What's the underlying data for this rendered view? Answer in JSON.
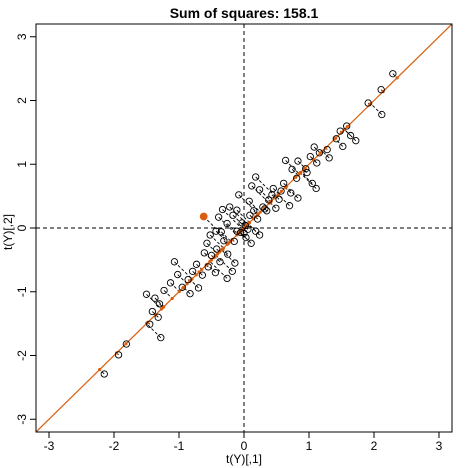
{
  "chart_data": {
    "type": "scatter",
    "title": "Sum of squares: 158.1",
    "xlabel": "t(Y)[,1]",
    "ylabel": "t(Y)[,2]",
    "xlim": [
      -3.2,
      3.2
    ],
    "ylim": [
      -3.2,
      3.2
    ],
    "xticks": [
      -3,
      -2,
      -1,
      0,
      1,
      2,
      3
    ],
    "yticks": [
      -3,
      -2,
      -1,
      0,
      1,
      2,
      3
    ],
    "projection_line": {
      "slope": 1.0,
      "intercept": 0.0
    },
    "highlighted_point": [
      -0.62,
      0.18
    ],
    "reference_lines": {
      "x": 0,
      "y": 0
    },
    "colors": {
      "points": "#000000",
      "projection": "#d95f0e",
      "reference": "#000000"
    },
    "points": [
      [
        2.29,
        2.42
      ],
      [
        2.11,
        2.17
      ],
      [
        2.12,
        1.78
      ],
      [
        1.91,
        1.96
      ],
      [
        1.72,
        1.37
      ],
      [
        1.64,
        1.45
      ],
      [
        1.58,
        1.6
      ],
      [
        1.52,
        1.28
      ],
      [
        1.48,
        1.52
      ],
      [
        1.42,
        1.4
      ],
      [
        1.31,
        1.1
      ],
      [
        1.28,
        1.23
      ],
      [
        1.16,
        1.18
      ],
      [
        1.12,
        1.02
      ],
      [
        1.08,
        1.27
      ],
      [
        1.02,
        1.12
      ],
      [
        0.97,
        0.87
      ],
      [
        0.95,
        0.93
      ],
      [
        1.05,
        0.7
      ],
      [
        1.11,
        0.62
      ],
      [
        0.83,
        1.05
      ],
      [
        0.81,
        0.78
      ],
      [
        0.74,
        0.92
      ],
      [
        0.64,
        1.06
      ],
      [
        0.61,
        0.7
      ],
      [
        0.72,
        0.55
      ],
      [
        0.83,
        0.47
      ],
      [
        0.7,
        0.35
      ],
      [
        0.57,
        0.58
      ],
      [
        0.54,
        0.45
      ],
      [
        0.45,
        0.62
      ],
      [
        0.43,
        0.52
      ],
      [
        0.49,
        0.31
      ],
      [
        0.38,
        0.44
      ],
      [
        0.35,
        0.27
      ],
      [
        0.29,
        0.33
      ],
      [
        0.32,
        0.3
      ],
      [
        0.18,
        0.8
      ],
      [
        0.12,
        0.66
      ],
      [
        0.24,
        0.6
      ],
      [
        0.08,
        0.42
      ],
      [
        0.09,
        0.2
      ],
      [
        0.15,
        0.27
      ],
      [
        0.21,
        0.14
      ],
      [
        -0.08,
        0.52
      ],
      [
        -0.11,
        0.28
      ],
      [
        -0.03,
        0.08
      ],
      [
        0.02,
        0.04
      ],
      [
        0.06,
        -0.02
      ],
      [
        0.0,
        -0.08
      ],
      [
        0.03,
        -0.15
      ],
      [
        -0.05,
        -0.07
      ],
      [
        0.11,
        -0.24
      ],
      [
        0.18,
        -0.05
      ],
      [
        0.24,
        -0.11
      ],
      [
        -0.22,
        0.33
      ],
      [
        -0.33,
        0.29
      ],
      [
        -0.39,
        0.17
      ],
      [
        -0.17,
        0.2
      ],
      [
        -0.26,
        0.07
      ],
      [
        -0.11,
        -0.05
      ],
      [
        -0.15,
        -0.21
      ],
      [
        -0.35,
        -0.06
      ],
      [
        -0.31,
        -0.2
      ],
      [
        -0.43,
        -0.05
      ],
      [
        -0.52,
        -0.11
      ],
      [
        -0.57,
        -0.24
      ],
      [
        -0.61,
        -0.39
      ],
      [
        -0.42,
        -0.33
      ],
      [
        -0.5,
        -0.43
      ],
      [
        -0.37,
        -0.53
      ],
      [
        -0.25,
        -0.41
      ],
      [
        -0.14,
        -0.55
      ],
      [
        -0.18,
        -0.68
      ],
      [
        -0.26,
        -0.79
      ],
      [
        -0.44,
        -0.7
      ],
      [
        -0.55,
        -0.61
      ],
      [
        -0.64,
        -0.74
      ],
      [
        -0.73,
        -0.57
      ],
      [
        -0.79,
        -0.68
      ],
      [
        -0.86,
        -0.81
      ],
      [
        -0.95,
        -0.93
      ],
      [
        -0.83,
        -1.03
      ],
      [
        -0.7,
        -0.94
      ],
      [
        -1.07,
        -0.53
      ],
      [
        -1.02,
        -0.73
      ],
      [
        -1.13,
        -0.86
      ],
      [
        -1.23,
        -0.98
      ],
      [
        -1.3,
        -1.19
      ],
      [
        -1.37,
        -1.1
      ],
      [
        -1.32,
        -1.4
      ],
      [
        -1.41,
        -1.31
      ],
      [
        -1.45,
        -1.51
      ],
      [
        -1.28,
        -1.72
      ],
      [
        -1.5,
        -1.04
      ],
      [
        -1.81,
        -1.82
      ],
      [
        -1.93,
        -1.99
      ],
      [
        -2.15,
        -2.29
      ],
      [
        -0.62,
        0.18
      ]
    ]
  }
}
